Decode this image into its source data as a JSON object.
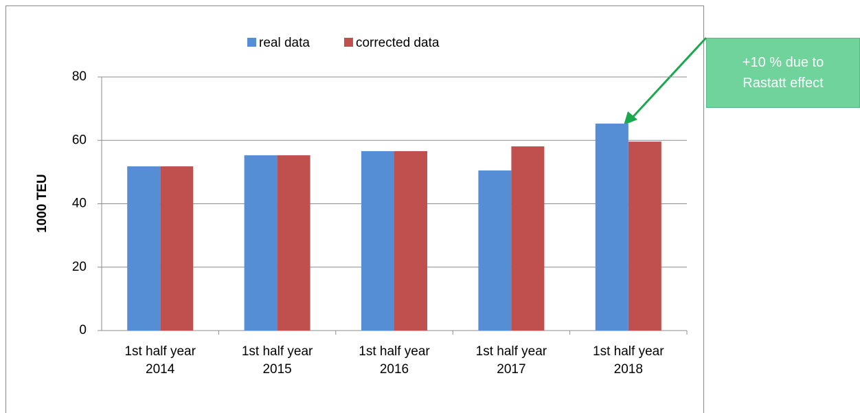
{
  "chart_data": {
    "type": "bar",
    "categories": [
      "1st half year 2014",
      "1st half year 2015",
      "1st half year 2016",
      "1st half year 2017",
      "1st half year 2018"
    ],
    "series": [
      {
        "name": "real data",
        "color": "#558ed5",
        "values": [
          51.8,
          55.3,
          56.6,
          50.5,
          65.3
        ]
      },
      {
        "name": "corrected data",
        "color": "#c0504d",
        "values": [
          51.8,
          55.3,
          56.6,
          58.1,
          59.6
        ]
      }
    ],
    "y_label": "1000 TEU",
    "ylim": [
      0,
      80
    ],
    "yticks": [
      0,
      20,
      40,
      60,
      80
    ],
    "grid": true,
    "legend": "top",
    "annotation": "+10 % due to Rastatt effect",
    "annotation_color": "#6fd39b"
  }
}
